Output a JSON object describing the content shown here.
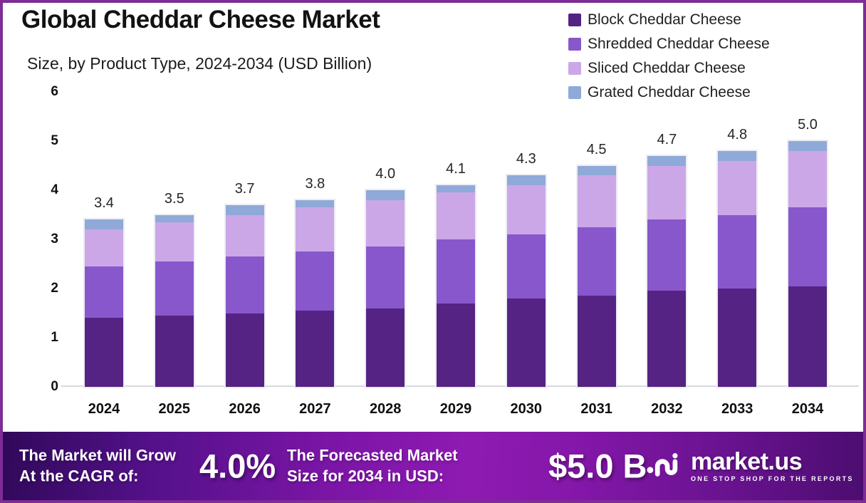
{
  "page": {
    "border_color": "#7E2C96",
    "background_color": "#FFFFFF"
  },
  "header": {
    "title": "Global Cheddar Cheese Market",
    "subtitle": "Size, by Product Type, 2024-2034 (USD Billion)"
  },
  "chart_data": {
    "type": "bar",
    "stacked": true,
    "title": "Global Cheddar Cheese Market",
    "subtitle": "Size, by Product Type, 2024-2034 (USD Billion)",
    "unit": "USD Billion",
    "grid": false,
    "legend_position": "top-right",
    "ylim": [
      0,
      6
    ],
    "y_ticks": [
      0,
      1,
      2,
      3,
      4,
      5,
      6
    ],
    "categories": [
      "2024",
      "2025",
      "2026",
      "2027",
      "2028",
      "2029",
      "2030",
      "2031",
      "2032",
      "2033",
      "2034"
    ],
    "series": [
      {
        "name": "Block Cheddar Cheese",
        "color": "#552383",
        "values": [
          1.4,
          1.45,
          1.5,
          1.55,
          1.6,
          1.7,
          1.8,
          1.85,
          1.95,
          2.0,
          2.05
        ]
      },
      {
        "name": "Shredded Cheddar Cheese",
        "color": "#8757CB",
        "values": [
          1.05,
          1.1,
          1.15,
          1.2,
          1.25,
          1.3,
          1.3,
          1.4,
          1.45,
          1.5,
          1.6
        ]
      },
      {
        "name": "Sliced Cheddar Cheese",
        "color": "#CBA7E8",
        "values": [
          0.75,
          0.8,
          0.85,
          0.9,
          0.95,
          0.95,
          1.0,
          1.05,
          1.1,
          1.1,
          1.15
        ]
      },
      {
        "name": "Grated Cheddar Cheese",
        "color": "#8FA9D8",
        "values": [
          0.2,
          0.15,
          0.2,
          0.15,
          0.2,
          0.15,
          0.2,
          0.2,
          0.2,
          0.2,
          0.2
        ]
      }
    ],
    "totals": [
      3.4,
      3.5,
      3.7,
      3.8,
      4.0,
      4.1,
      4.3,
      4.5,
      4.7,
      4.8,
      5.0
    ]
  },
  "footer": {
    "cagr_label_line1": "The Market will Grow",
    "cagr_label_line2": "At the CAGR of:",
    "cagr_value": "4.0%",
    "forecast_label_line1": "The Forecasted Market",
    "forecast_label_line2": "Size for 2034 in USD:",
    "forecast_value": "$5.0 B",
    "brand_name": "market.us",
    "brand_tagline": "ONE STOP SHOP FOR THE REPORTS",
    "gradient_colors": [
      "#30095A",
      "#8E1AB2",
      "#4C0D70"
    ]
  }
}
